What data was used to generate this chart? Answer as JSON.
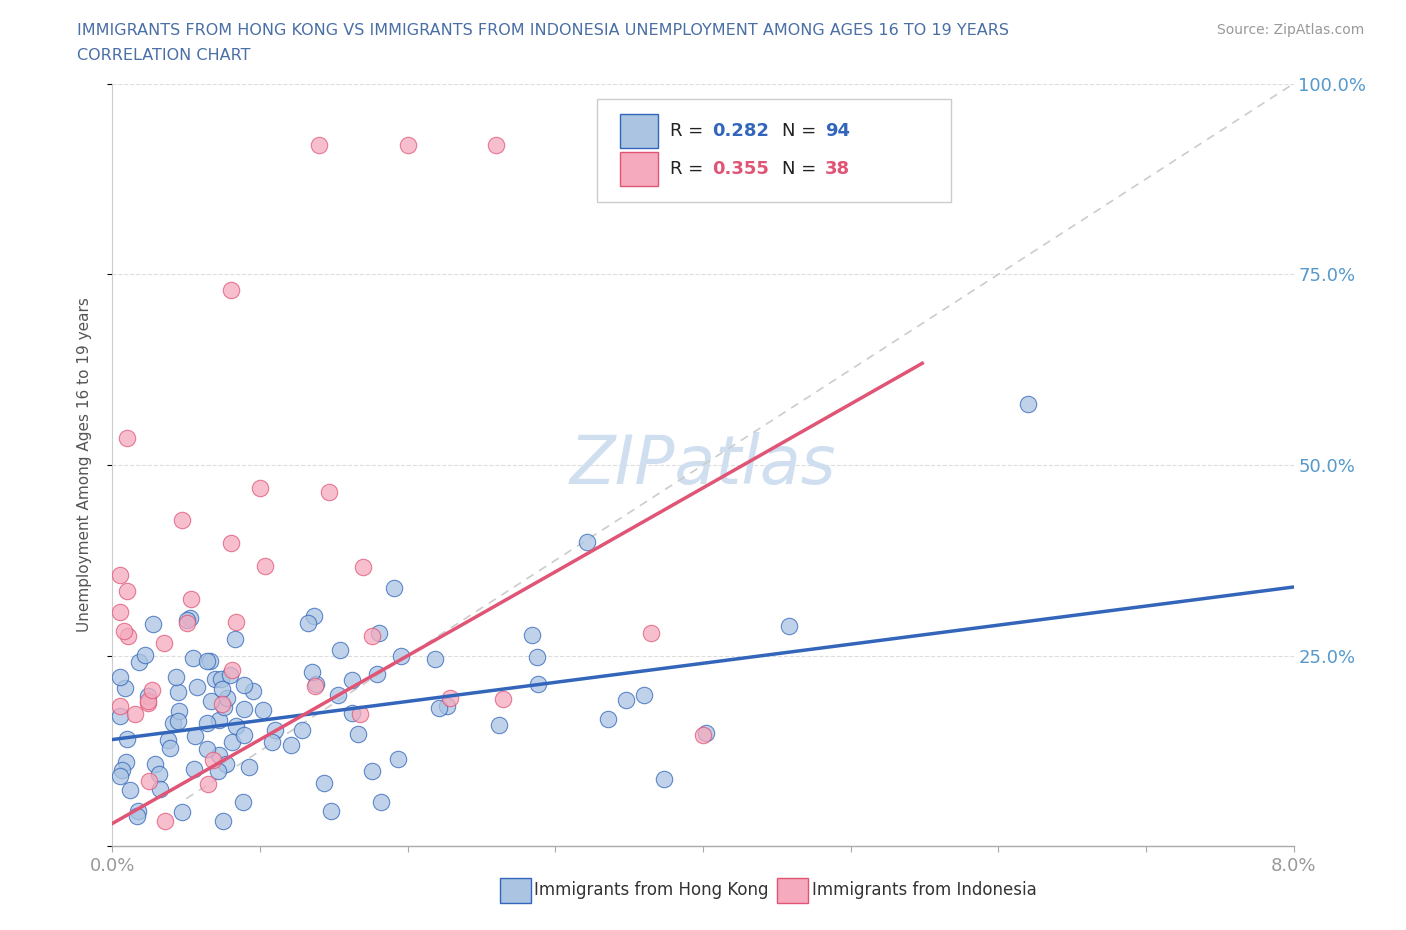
{
  "title_line1": "IMMIGRANTS FROM HONG KONG VS IMMIGRANTS FROM INDONESIA UNEMPLOYMENT AMONG AGES 16 TO 19 YEARS",
  "title_line2": "CORRELATION CHART",
  "source_text": "Source: ZipAtlas.com",
  "ylabel": "Unemployment Among Ages 16 to 19 years",
  "xlim": [
    0.0,
    0.08
  ],
  "ylim": [
    0.0,
    1.0
  ],
  "xticks": [
    0.0,
    0.01,
    0.02,
    0.03,
    0.04,
    0.05,
    0.06,
    0.07,
    0.08
  ],
  "xticklabels": [
    "0.0%",
    "",
    "",
    "",
    "",
    "",
    "",
    "",
    "8.0%"
  ],
  "yticks": [
    0.0,
    0.25,
    0.5,
    0.75,
    1.0
  ],
  "yticklabels_right": [
    "",
    "25.0%",
    "50.0%",
    "75.0%",
    "100.0%"
  ],
  "r_hk": 0.282,
  "n_hk": 94,
  "r_id": 0.355,
  "n_id": 38,
  "color_hk": "#aac4e2",
  "color_id": "#f5aabe",
  "trendline_hk_color": "#3366bb",
  "trendline_id_color": "#e05575",
  "diagonal_color": "#cccccc",
  "title_color": "#4a6fa5",
  "watermark_color": "#d0dff0",
  "tick_color": "#5599cc"
}
